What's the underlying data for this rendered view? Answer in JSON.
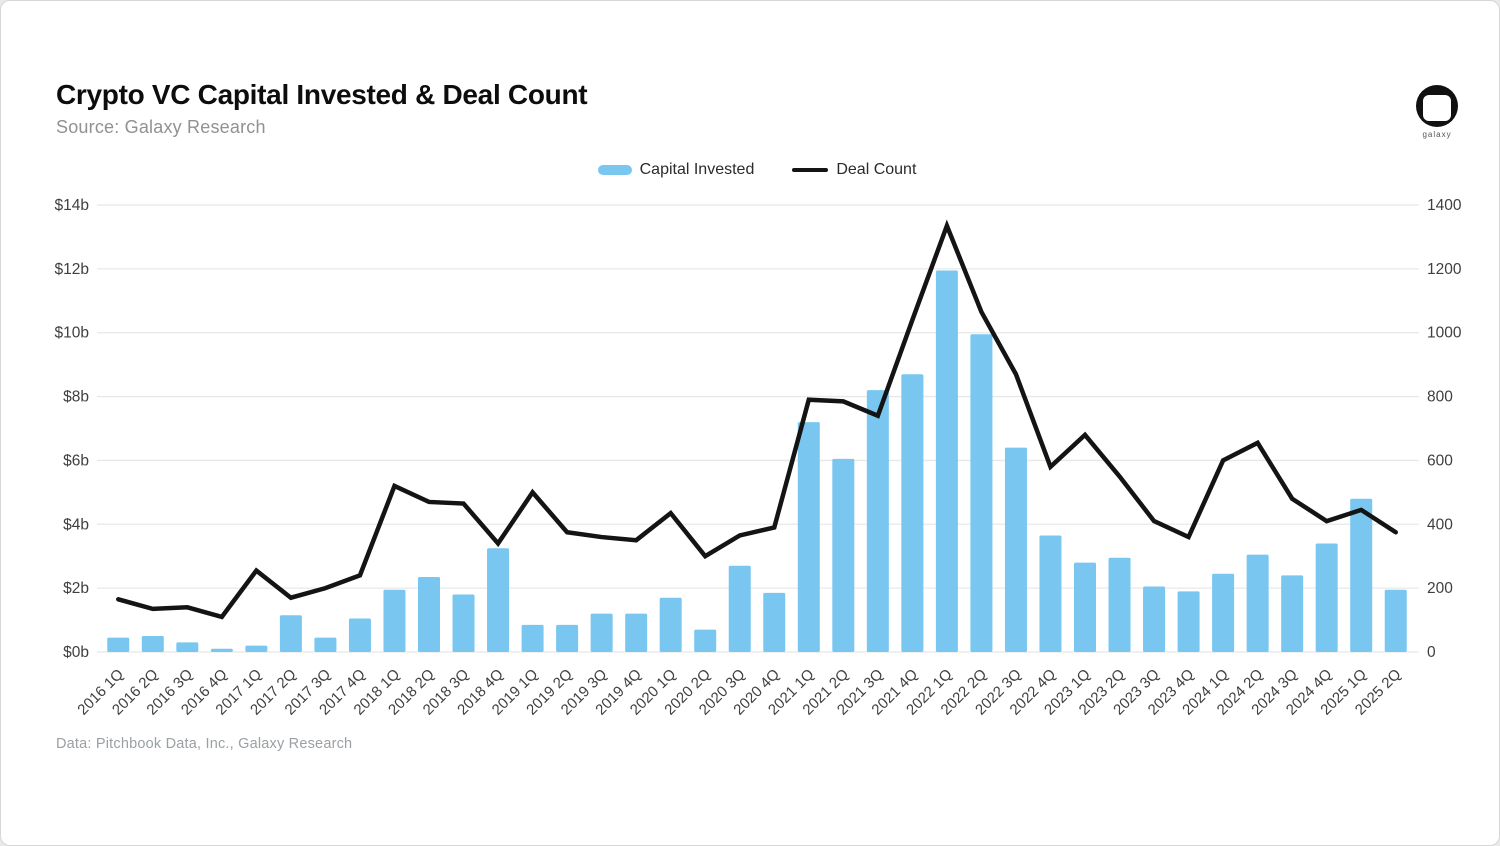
{
  "header": {
    "title": "Crypto VC Capital Invested & Deal Count",
    "source": "Source: Galaxy Research"
  },
  "logo": {
    "label": "galaxy"
  },
  "legend": {
    "capital_invested": "Capital Invested",
    "deal_count": "Deal Count"
  },
  "footer": {
    "credit": "Data: Pitchbook Data, Inc., Galaxy Research"
  },
  "colors": {
    "bar": "#79C6F1",
    "line": "#141414",
    "grid": "#e8e8e8",
    "tick_text": "#3d3f41",
    "x_label_text": "#3d3f41"
  },
  "chart_data": {
    "type": "combo-bar-line",
    "title": "Crypto VC Capital Invested & Deal Count",
    "categories": [
      "2016 1Q",
      "2016 2Q",
      "2016 3Q",
      "2016 4Q",
      "2017 1Q",
      "2017 2Q",
      "2017 3Q",
      "2017 4Q",
      "2018 1Q",
      "2018 2Q",
      "2018 3Q",
      "2018 4Q",
      "2019 1Q",
      "2019 2Q",
      "2019 3Q",
      "2019 4Q",
      "2020 1Q",
      "2020 2Q",
      "2020 3Q",
      "2020 4Q",
      "2021 1Q",
      "2021 2Q",
      "2021 3Q",
      "2021 4Q",
      "2022 1Q",
      "2022 2Q",
      "2022 3Q",
      "2022 4Q",
      "2023 1Q",
      "2023 2Q",
      "2023 3Q",
      "2023 4Q",
      "2024 1Q",
      "2024 2Q",
      "2024 3Q",
      "2024 4Q",
      "2025 1Q",
      "2025 2Q"
    ],
    "series": [
      {
        "name": "Capital Invested",
        "type": "bar",
        "axis": "left",
        "unit": "billion USD",
        "values": [
          0.45,
          0.5,
          0.3,
          0.1,
          0.2,
          1.15,
          0.45,
          1.05,
          1.95,
          2.35,
          1.8,
          3.25,
          0.85,
          0.85,
          1.2,
          1.2,
          1.7,
          0.7,
          2.7,
          1.85,
          7.2,
          6.05,
          8.2,
          8.7,
          11.95,
          9.95,
          6.4,
          3.65,
          2.8,
          2.95,
          2.05,
          1.9,
          2.45,
          3.05,
          2.4,
          3.4,
          4.8,
          1.95
        ]
      },
      {
        "name": "Deal Count",
        "type": "line",
        "axis": "right",
        "unit": "deals",
        "values": [
          165,
          135,
          140,
          110,
          255,
          170,
          200,
          240,
          520,
          470,
          465,
          340,
          500,
          375,
          360,
          350,
          435,
          300,
          365,
          390,
          790,
          785,
          740,
          1040,
          1335,
          1065,
          870,
          580,
          680,
          550,
          410,
          360,
          600,
          655,
          480,
          410,
          445,
          375
        ]
      }
    ],
    "left_axis": {
      "ticks": [
        "$0b",
        "$2b",
        "$4b",
        "$6b",
        "$8b",
        "$10b",
        "$12b",
        "$14b"
      ],
      "range": [
        0,
        14
      ]
    },
    "right_axis": {
      "ticks": [
        "0",
        "200",
        "400",
        "600",
        "800",
        "1000",
        "1200",
        "1400"
      ],
      "range": [
        0,
        1400
      ]
    },
    "grid": "horizontal",
    "legend_position": "top-center",
    "x_label_rotation": -45
  }
}
